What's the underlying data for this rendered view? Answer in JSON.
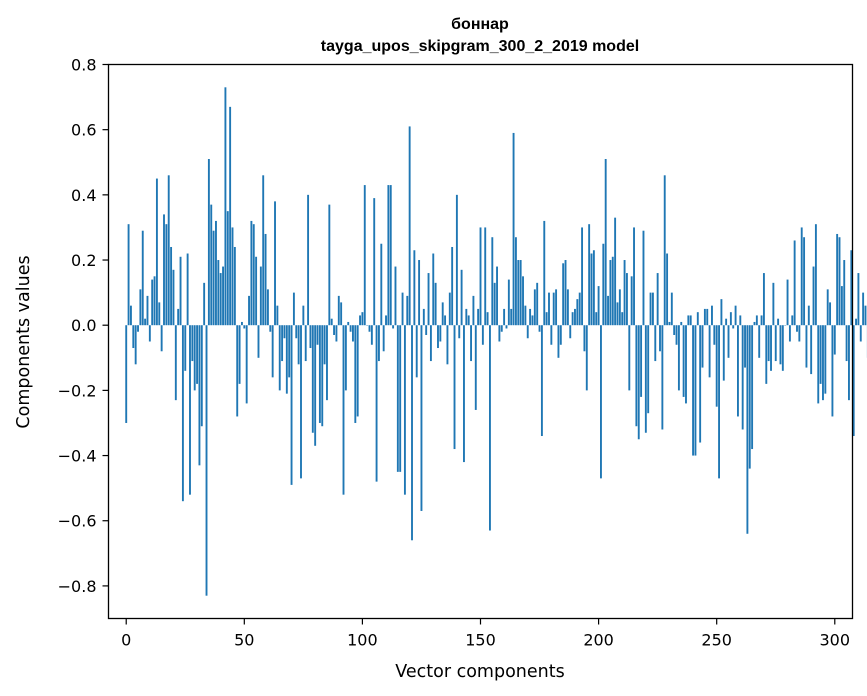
{
  "chart_data": {
    "type": "bar",
    "title": "боннар",
    "subtitle": "tayga_upos_skipgram_300_2_2019 model",
    "xlabel": "Vector components",
    "ylabel": "Components values",
    "xlim": [
      -7.5,
      307.5
    ],
    "ylim": [
      -0.9,
      0.8
    ],
    "xticks": [
      0,
      50,
      100,
      150,
      200,
      250,
      300
    ],
    "xtick_labels": [
      "0",
      "50",
      "100",
      "150",
      "200",
      "250",
      "300"
    ],
    "yticks": [
      -0.8,
      -0.6,
      -0.4,
      -0.2,
      0.0,
      0.2,
      0.4,
      0.6,
      0.8
    ],
    "ytick_labels": [
      "−0.8",
      "−0.6",
      "−0.4",
      "−0.2",
      "0.0",
      "0.2",
      "0.4",
      "0.6",
      "0.8"
    ],
    "grid": false,
    "bar_color": "#1f77b4",
    "values": [
      -0.3,
      0.31,
      0.06,
      -0.07,
      -0.12,
      -0.02,
      0.11,
      0.29,
      0.02,
      0.09,
      -0.05,
      0.14,
      0.15,
      0.45,
      0.07,
      -0.08,
      0.34,
      0.31,
      0.46,
      0.24,
      0.17,
      -0.23,
      0.05,
      0.21,
      -0.54,
      -0.14,
      0.22,
      -0.52,
      -0.11,
      -0.2,
      -0.18,
      -0.43,
      -0.31,
      0.13,
      -0.83,
      0.51,
      0.37,
      0.29,
      0.32,
      0.2,
      0.16,
      0.18,
      0.73,
      0.35,
      0.67,
      0.3,
      0.24,
      -0.28,
      -0.18,
      0.01,
      -0.01,
      -0.24,
      0.09,
      0.32,
      0.31,
      0.21,
      -0.1,
      0.18,
      0.46,
      0.28,
      0.11,
      -0.02,
      -0.16,
      0.38,
      0.06,
      -0.2,
      -0.11,
      -0.04,
      -0.21,
      -0.16,
      -0.49,
      0.1,
      -0.04,
      -0.12,
      -0.47,
      0.06,
      -0.11,
      0.4,
      -0.07,
      -0.33,
      -0.37,
      -0.06,
      -0.3,
      -0.31,
      -0.12,
      -0.23,
      0.37,
      0.02,
      -0.03,
      -0.05,
      0.09,
      0.07,
      -0.52,
      -0.2,
      0.01,
      -0.02,
      -0.05,
      -0.3,
      -0.28,
      0.03,
      0.04,
      0.43,
      0.0,
      -0.02,
      -0.06,
      0.39,
      -0.48,
      -0.11,
      0.25,
      -0.08,
      0.03,
      0.43,
      0.43,
      -0.01,
      0.18,
      -0.45,
      -0.45,
      0.1,
      -0.52,
      0.09,
      0.61,
      -0.66,
      0.23,
      -0.16,
      0.2,
      -0.57,
      0.05,
      -0.03,
      0.16,
      -0.11,
      0.22,
      0.13,
      -0.07,
      -0.05,
      0.07,
      0.03,
      -0.12,
      0.1,
      0.24,
      -0.38,
      0.4,
      -0.04,
      0.17,
      -0.42,
      0.05,
      0.03,
      -0.11,
      0.09,
      -0.26,
      0.05,
      0.3,
      -0.06,
      0.3,
      0.04,
      -0.63,
      0.27,
      0.13,
      0.18,
      -0.05,
      -0.02,
      0.05,
      -0.01,
      0.14,
      0.05,
      0.59,
      0.27,
      0.2,
      0.2,
      0.15,
      0.06,
      -0.04,
      0.05,
      0.03,
      0.11,
      0.13,
      -0.02,
      -0.34,
      0.32,
      0.04,
      0.1,
      -0.06,
      0.1,
      0.11,
      -0.1,
      -0.06,
      0.19,
      0.2,
      0.11,
      -0.04,
      0.04,
      0.05,
      0.08,
      0.1,
      0.3,
      -0.08,
      -0.2,
      0.31,
      0.22,
      0.23,
      0.04,
      0.12,
      -0.47,
      0.25,
      0.51,
      0.09,
      0.2,
      0.21,
      0.33,
      0.07,
      0.11,
      0.04,
      0.2,
      0.16,
      -0.2,
      0.15,
      0.3,
      -0.31,
      -0.35,
      -0.22,
      0.29,
      -0.33,
      -0.27,
      0.1,
      0.1,
      -0.11,
      0.16,
      -0.08,
      -0.32,
      0.46,
      0.22,
      0.01,
      0.1,
      -0.03,
      -0.06,
      -0.2,
      0.01,
      -0.22,
      -0.24,
      0.03,
      0.03,
      -0.4,
      -0.4,
      0.04,
      -0.36,
      -0.13,
      0.05,
      0.05,
      -0.16,
      0.06,
      -0.06,
      -0.25,
      -0.47,
      0.08,
      -0.17,
      0.02,
      -0.1,
      0.04,
      -0.01,
      0.06,
      -0.28,
      0.03,
      -0.32,
      -0.13,
      -0.64,
      -0.44,
      -0.38,
      0.01,
      0.03,
      -0.1,
      0.03,
      0.16,
      -0.18,
      -0.11,
      -0.14,
      0.13,
      -0.11,
      0.02,
      -0.12,
      -0.14,
      0.0,
      0.14,
      -0.05,
      0.03,
      0.26,
      -0.02,
      -0.05,
      0.3,
      0.27,
      -0.13,
      0.06,
      -0.15,
      0.18,
      0.31,
      -0.24,
      -0.18,
      -0.23,
      -0.21,
      0.11,
      0.07,
      -0.28,
      -0.09,
      0.28,
      0.27,
      0.12,
      0.2,
      -0.11,
      -0.23,
      0.23,
      -0.34,
      0.02,
      0.16,
      -0.05,
      0.1,
      0.06,
      -0.1
    ]
  }
}
